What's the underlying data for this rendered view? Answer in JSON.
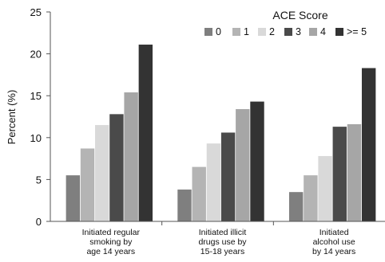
{
  "chart_data": {
    "type": "bar",
    "title": "",
    "xlabel": "",
    "ylabel": "Percent (%)",
    "ylim": [
      0,
      25
    ],
    "yticks": [
      0,
      5,
      10,
      15,
      20,
      25
    ],
    "grid": false,
    "legend": {
      "title": "ACE Score",
      "placement": "top-right"
    },
    "categories": [
      [
        "Initiated regular",
        "smoking by",
        "age 14 years"
      ],
      [
        "Initiated illicit",
        "drugs use by",
        "15-18 years"
      ],
      [
        "Initiated",
        "alcohol use",
        "by 14 years"
      ]
    ],
    "series": [
      {
        "name": "0",
        "color": "#7f7f7f",
        "values": [
          5.5,
          3.8,
          3.5
        ]
      },
      {
        "name": "1",
        "color": "#b4b4b4",
        "values": [
          8.7,
          6.5,
          5.5
        ]
      },
      {
        "name": "2",
        "color": "#d9d9d9",
        "values": [
          11.5,
          9.3,
          7.8
        ]
      },
      {
        "name": "3",
        "color": "#4a4a4a",
        "values": [
          12.8,
          10.6,
          11.3
        ]
      },
      {
        "name": "4",
        "color": "#a6a6a6",
        "values": [
          15.4,
          13.4,
          11.6
        ]
      },
      {
        "name": ">= 5",
        "color": "#333333",
        "values": [
          21.1,
          14.3,
          18.3
        ]
      }
    ]
  }
}
